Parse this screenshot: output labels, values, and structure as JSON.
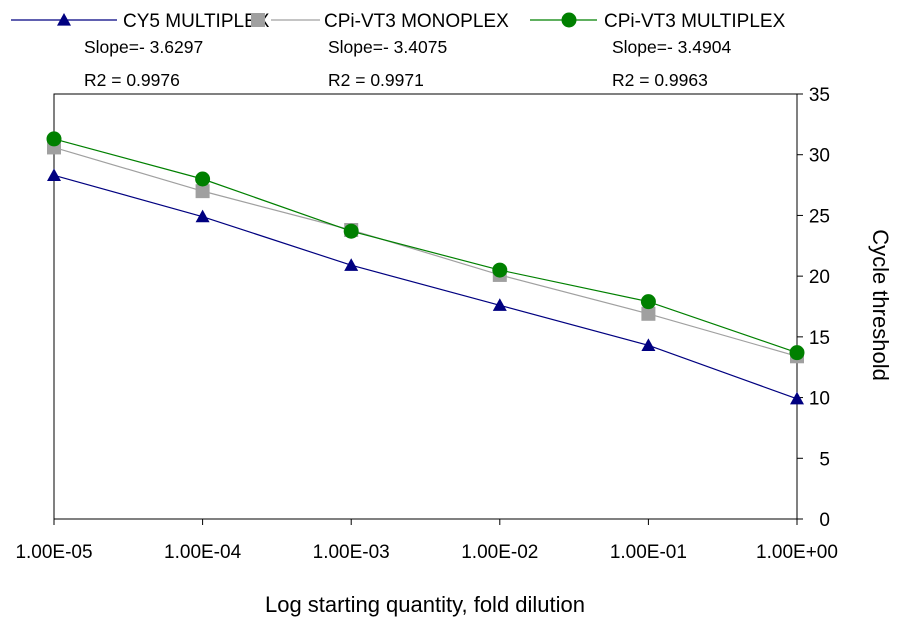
{
  "chart_data": {
    "type": "line",
    "title": "",
    "xlabel": "Log starting quantity, fold dilution",
    "ylabel": "Cycle threshold",
    "categories": [
      "1.00E-05",
      "1.00E-04",
      "1.00E-03",
      "1.00E-02",
      "1.00E-01",
      "1.00E+00"
    ],
    "ylim": [
      0,
      35
    ],
    "yticks": [
      0,
      5,
      10,
      15,
      20,
      25,
      30,
      35
    ],
    "y_axis_side": "right",
    "grid": false,
    "legend_position": "top",
    "series": [
      {
        "name": "CY5 MULTIPLEX",
        "color": "#000080",
        "marker": "triangle",
        "values": [
          28.3,
          24.9,
          20.9,
          17.6,
          14.3,
          9.9
        ],
        "annotation": [
          "Slope=- 3.6297",
          "R2 = 0.9976"
        ]
      },
      {
        "name": "CPi-VT3 MONOPLEX",
        "color": "#a0a0a0",
        "marker": "square",
        "values": [
          30.6,
          27.0,
          23.8,
          20.1,
          16.9,
          13.4
        ],
        "annotation": [
          "Slope=- 3.4075",
          "R2 = 0.9971"
        ]
      },
      {
        "name": "CPi-VT3 MULTIPLEX",
        "color": "#008000",
        "marker": "circle",
        "values": [
          31.3,
          28.0,
          23.7,
          20.5,
          17.9,
          13.7
        ],
        "annotation": [
          "Slope=- 3.4904",
          "R2 = 0.9963"
        ]
      }
    ]
  }
}
